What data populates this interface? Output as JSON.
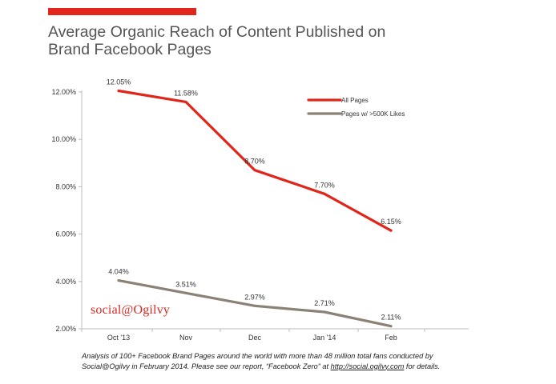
{
  "header": {
    "title_line1": "Average Organic Reach of Content Published on",
    "title_line2": "Brand Facebook Pages"
  },
  "colors": {
    "accent": "#e3261b",
    "series_all_pages": "#e0251a",
    "series_large_pages": "#8a8275",
    "text": "#555555"
  },
  "chart_data": {
    "type": "line",
    "title": "Average Organic Reach of Content Published on Brand Facebook Pages",
    "xlabel": "",
    "ylabel": "",
    "categories": [
      "Oct '13",
      "Nov",
      "Dec",
      "Jan '14",
      "Feb"
    ],
    "ylim": [
      2,
      12
    ],
    "yticks": [
      2,
      4,
      6,
      8,
      10,
      12
    ],
    "ytick_labels": [
      "2.00%",
      "4.00%",
      "6.00%",
      "8.00%",
      "10.00%",
      "12.00%"
    ],
    "grid": false,
    "legend": "top-right",
    "series": [
      {
        "name": "All Pages",
        "color": "#e0251a",
        "values": [
          12.05,
          11.58,
          8.7,
          7.7,
          6.15
        ],
        "labels": [
          "12.05%",
          "11.58%",
          "8.70%",
          "7.70%",
          "6.15%"
        ]
      },
      {
        "name": "Pages w/ >500K Likes",
        "color": "#8a8275",
        "values": [
          4.04,
          3.51,
          2.97,
          2.71,
          2.11
        ],
        "labels": [
          "4.04%",
          "3.51%",
          "2.97%",
          "2.71%",
          "2.11%"
        ]
      }
    ]
  },
  "brand": {
    "logo_text": "social@Ogilvy"
  },
  "footnote": {
    "line1": "Analysis of 100+ Facebook Brand Pages around the world with more than 48 million total fans conducted by",
    "line2_pre": "Social@Ogilvy in February 2014. Please see our report, “Facebook Zero” at ",
    "line2_link": "http://social.ogilvy.com",
    "line2_post": " for details."
  }
}
